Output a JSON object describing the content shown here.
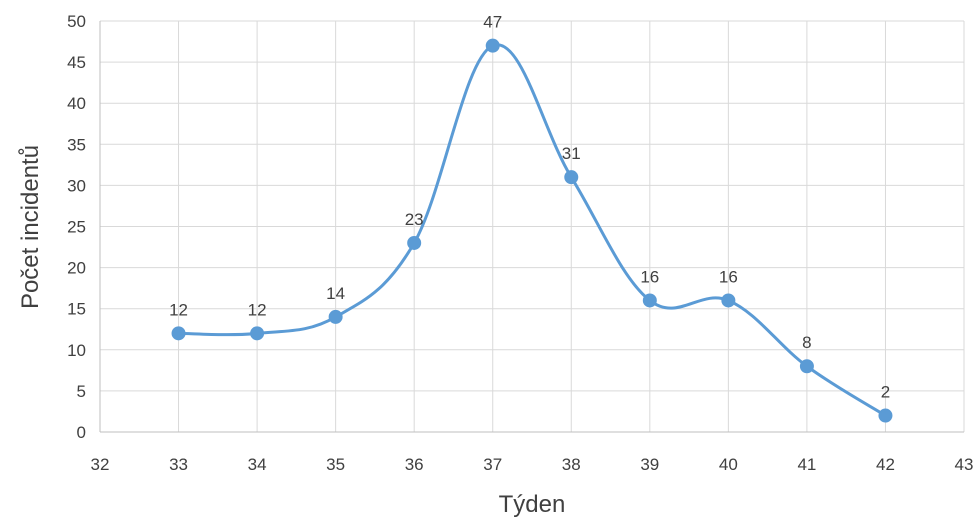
{
  "chart_data": {
    "type": "scatter",
    "style": "smoothed line with markers",
    "title": "",
    "xlabel": "Týden",
    "ylabel": "Počet incidentů",
    "xlim": [
      32,
      43
    ],
    "ylim": [
      0,
      50
    ],
    "x_ticks": [
      32,
      33,
      34,
      35,
      36,
      37,
      38,
      39,
      40,
      41,
      42,
      43
    ],
    "y_ticks": [
      0,
      5,
      10,
      15,
      20,
      25,
      30,
      35,
      40,
      45,
      50
    ],
    "grid": true,
    "legend": "none",
    "series": [
      {
        "x": [
          33,
          34,
          35,
          36,
          37,
          38,
          39,
          40,
          41,
          42
        ],
        "y": [
          12,
          12,
          14,
          23,
          47,
          31,
          16,
          16,
          8,
          2
        ],
        "color": "#5b9bd5",
        "data_labels": true
      }
    ]
  }
}
